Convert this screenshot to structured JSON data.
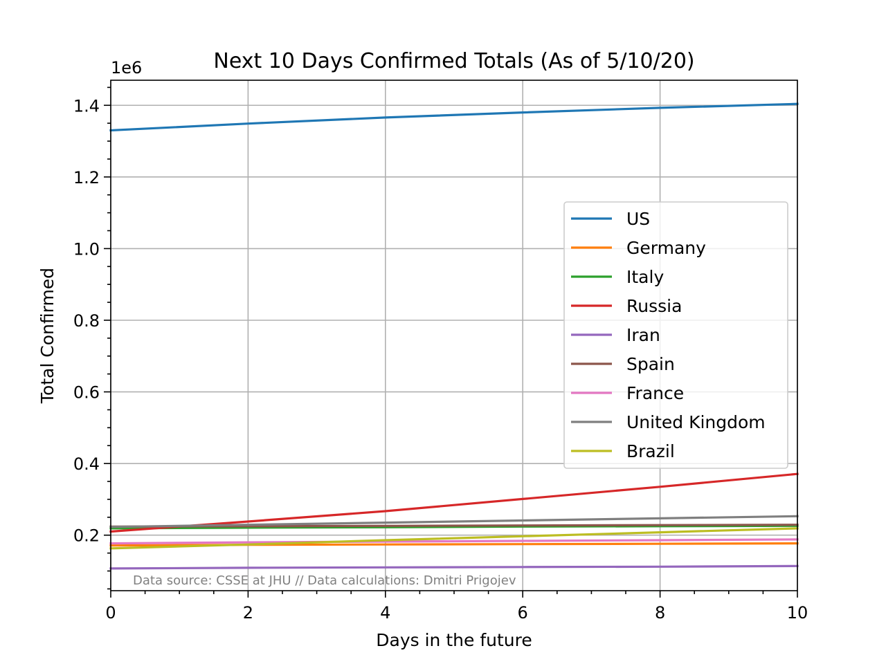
{
  "chart_data": {
    "type": "line",
    "title": "Next 10 Days Confirmed Totals (As of 5/10/20)",
    "xlabel": "Days in the future",
    "ylabel": "Total Confirmed",
    "y_offset_label": "1e6",
    "xlim": [
      0,
      10
    ],
    "ylim": [
      0.045,
      1.47
    ],
    "x_ticks": [
      0,
      2,
      4,
      6,
      8,
      10
    ],
    "x_tick_labels": [
      "0",
      "2",
      "4",
      "6",
      "8",
      "10"
    ],
    "y_ticks": [
      0.2,
      0.4,
      0.6,
      0.8,
      1.0,
      1.2,
      1.4
    ],
    "y_tick_labels": [
      "0.2",
      "0.4",
      "0.6",
      "0.8",
      "1.0",
      "1.2",
      "1.4"
    ],
    "x_minor_step": 0.5,
    "y_minor_step": 0.05,
    "grid": true,
    "legend_position": "center-right",
    "source_note": "Data source: CSSE at JHU // Data calculations: Dmitri Prigojev",
    "x": [
      0,
      2,
      4,
      6,
      8,
      10
    ],
    "series": [
      {
        "name": "US",
        "color": "#1f77b4",
        "values": [
          1.33,
          1.349,
          1.366,
          1.38,
          1.393,
          1.404
        ]
      },
      {
        "name": "Germany",
        "color": "#ff7f0e",
        "values": [
          0.171,
          0.173,
          0.174,
          0.175,
          0.176,
          0.177
        ]
      },
      {
        "name": "Italy",
        "color": "#2ca02c",
        "values": [
          0.219,
          0.221,
          0.222,
          0.224,
          0.225,
          0.226
        ]
      },
      {
        "name": "Russia",
        "color": "#d62728",
        "values": [
          0.21,
          0.238,
          0.267,
          0.301,
          0.335,
          0.371
        ]
      },
      {
        "name": "Iran",
        "color": "#9467bd",
        "values": [
          0.107,
          0.109,
          0.11,
          0.111,
          0.112,
          0.114
        ]
      },
      {
        "name": "Spain",
        "color": "#8c564b",
        "values": [
          0.224,
          0.225,
          0.226,
          0.227,
          0.228,
          0.229
        ]
      },
      {
        "name": "France",
        "color": "#e377c2",
        "values": [
          0.177,
          0.18,
          0.182,
          0.184,
          0.186,
          0.188
        ]
      },
      {
        "name": "United Kingdom",
        "color": "#7f7f7f",
        "values": [
          0.223,
          0.229,
          0.235,
          0.241,
          0.247,
          0.253
        ]
      },
      {
        "name": "Brazil",
        "color": "#bcbd22",
        "values": [
          0.163,
          0.174,
          0.186,
          0.197,
          0.208,
          0.219
        ]
      }
    ]
  }
}
